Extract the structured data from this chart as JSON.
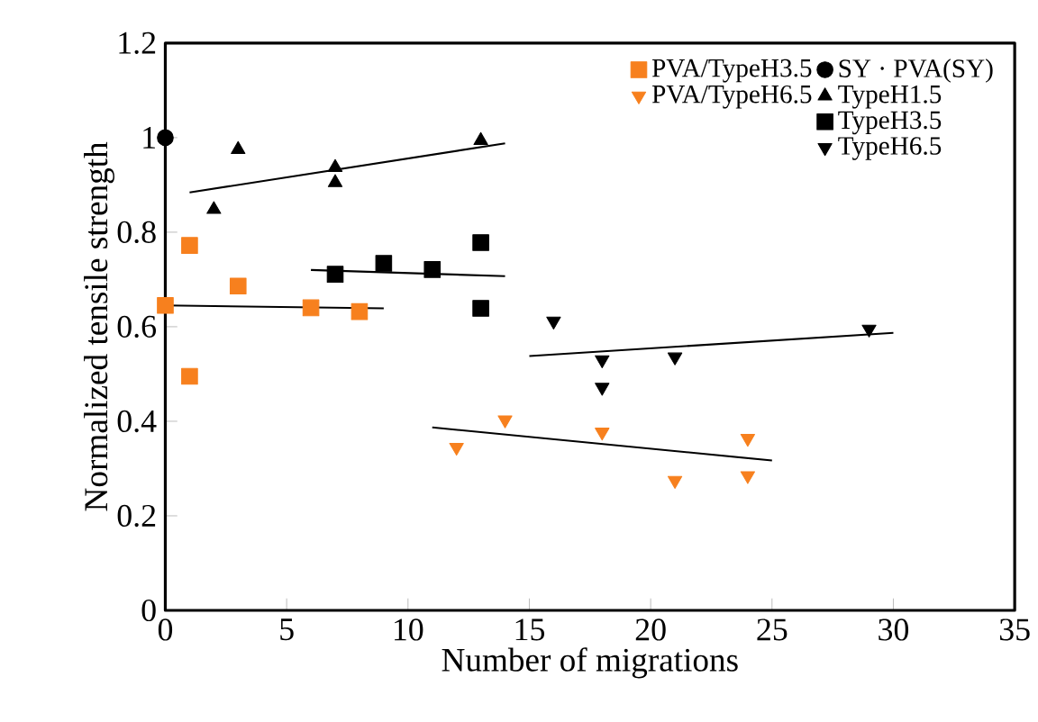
{
  "chart_data": {
    "type": "scatter",
    "xlabel": "Number of migrations",
    "ylabel": "Normalized tensile strength",
    "xlim": [
      0,
      35
    ],
    "xticks": [
      0,
      5,
      10,
      15,
      20,
      25,
      30,
      35
    ],
    "ylim": [
      0,
      1.2
    ],
    "yticks": [
      0,
      0.2,
      0.4,
      0.6,
      0.8,
      1,
      1.2
    ],
    "legend": "top right",
    "grid": false,
    "series": [
      {
        "name": "PVA/TypeH3.5",
        "color": "#f7801e",
        "marker": "square",
        "x": [
          0,
          1,
          1,
          3,
          6,
          8
        ],
        "values": [
          0.645,
          0.772,
          0.495,
          0.686,
          0.64,
          0.632
        ]
      },
      {
        "name": "PVA/TypeH6.5",
        "color": "#f7801e",
        "marker": "triangle-down",
        "x": [
          12,
          14,
          18,
          21,
          24,
          24
        ],
        "values": [
          0.345,
          0.403,
          0.377,
          0.275,
          0.364,
          0.285
        ]
      },
      {
        "name": "SY · PVA(SY)",
        "color": "#000000",
        "marker": "circle",
        "x": [
          0
        ],
        "values": [
          1.0
        ]
      },
      {
        "name": "TypeH1.5",
        "color": "#000000",
        "marker": "triangle",
        "x": [
          2,
          3,
          7,
          7,
          13
        ],
        "values": [
          0.848,
          0.975,
          0.937,
          0.905,
          0.994
        ]
      },
      {
        "name": "TypeH3.5",
        "color": "#000000",
        "marker": "square",
        "x": [
          7,
          9,
          11,
          13,
          13
        ],
        "values": [
          0.711,
          0.734,
          0.721,
          0.778,
          0.639
        ]
      },
      {
        "name": "TypeH6.5",
        "color": "#000000",
        "marker": "triangle-down",
        "x": [
          16,
          18,
          18,
          21,
          29
        ],
        "values": [
          0.612,
          0.53,
          0.472,
          0.536,
          0.595
        ]
      },
      {
        "type": "line",
        "color": "#000000",
        "marker": "none",
        "line_style": "solid",
        "x": [
          0,
          9
        ],
        "values": [
          0.645,
          0.639
        ]
      },
      {
        "type": "line",
        "color": "#000000",
        "marker": "none",
        "line_style": "solid",
        "x": [
          11,
          25
        ],
        "values": [
          0.387,
          0.317
        ]
      },
      {
        "type": "line",
        "color": "#000000",
        "marker": "none",
        "line_style": "solid",
        "x": [
          1,
          14
        ],
        "values": [
          0.884,
          0.988
        ]
      },
      {
        "type": "line",
        "color": "#000000",
        "marker": "none",
        "line_style": "solid",
        "x": [
          6,
          14
        ],
        "values": [
          0.72,
          0.707
        ]
      },
      {
        "type": "line",
        "color": "#000000",
        "marker": "none",
        "line_style": "solid",
        "x": [
          15,
          30
        ],
        "values": [
          0.538,
          0.587
        ]
      }
    ]
  }
}
